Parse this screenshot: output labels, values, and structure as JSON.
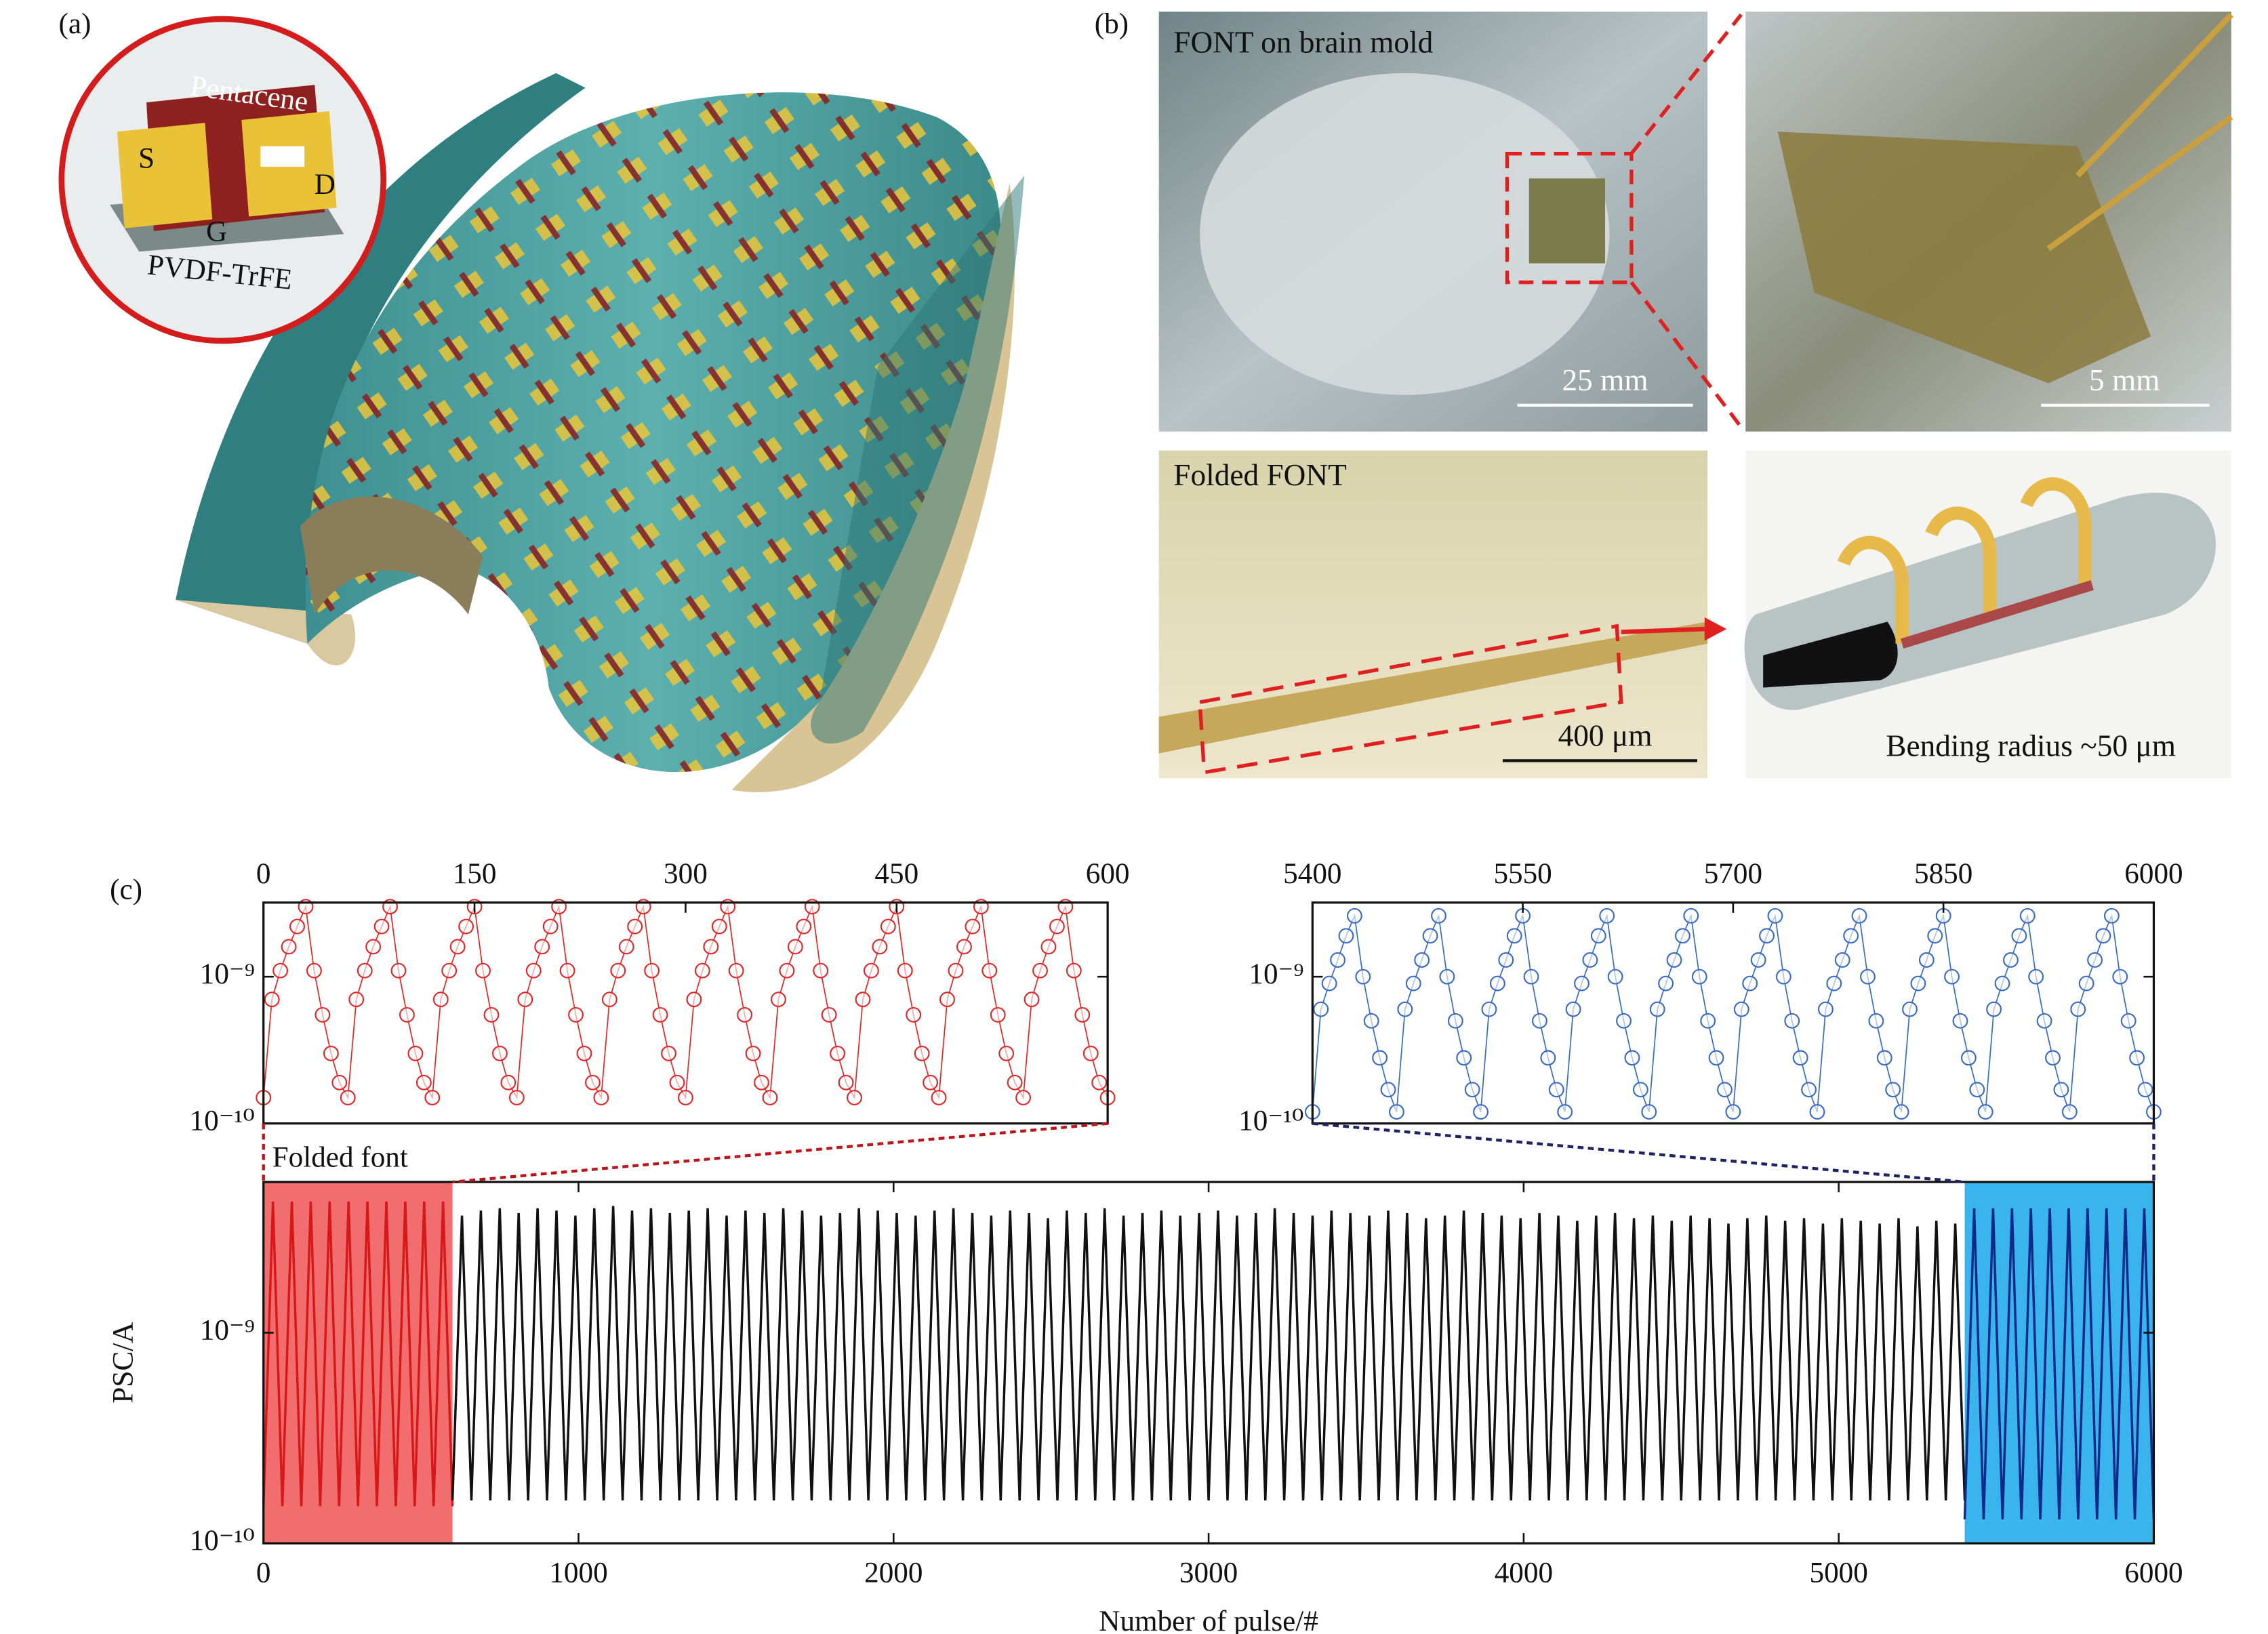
{
  "panels": {
    "panel_a": {
      "label": "(a)",
      "pentacene": "Pentacene",
      "source": "S",
      "drain": "D",
      "gate": "G",
      "dielectric": "PVDF-TrFE"
    },
    "panel_b": {
      "label": "(b)",
      "photo1_caption": "FONT on brain mold",
      "photo1_scale": "25 mm",
      "photo2_scale": "5 mm",
      "photo3_caption": "Folded FONT",
      "photo3_scale": "400 μm",
      "photo4_caption": "Bending radius ~50 μm"
    },
    "panel_c": {
      "label": "(c)"
    }
  },
  "chart_data": [
    {
      "type": "scatter",
      "log_y": true,
      "xlim": [
        0,
        600
      ],
      "xticks": [
        0,
        150,
        300,
        450,
        600
      ],
      "ylim": [
        1e-10,
        3.2e-09
      ],
      "yticks": [
        {
          "value": 1e-10,
          "label": "10⁻¹⁰"
        },
        {
          "value": 1e-09,
          "label": "10⁻⁹"
        }
      ],
      "series": [
        {
          "color": "#e02828",
          "x": [
            0,
            6,
            12,
            18,
            24,
            30,
            36,
            42,
            48,
            54,
            60,
            66,
            72,
            78,
            84,
            90,
            96,
            102,
            108,
            114,
            120,
            126,
            132,
            138,
            144,
            150,
            156,
            162,
            168,
            174,
            180,
            186,
            192,
            198,
            204,
            210,
            216,
            222,
            228,
            234,
            240,
            246,
            252,
            258,
            264,
            270,
            276,
            282,
            288,
            294,
            300,
            306,
            312,
            318,
            324,
            330,
            336,
            342,
            348,
            354,
            360,
            366,
            372,
            378,
            384,
            390,
            396,
            402,
            408,
            414,
            420,
            426,
            432,
            438,
            444,
            450,
            456,
            462,
            468,
            474,
            480,
            486,
            492,
            498,
            504,
            510,
            516,
            522,
            528,
            534,
            540,
            546,
            552,
            558,
            564,
            570,
            576,
            582,
            588,
            594,
            600
          ],
          "values": [
            1.5e-10,
            7e-10,
            1.1e-09,
            1.6e-09,
            2.2e-09,
            3e-09,
            1.1e-09,
            5.5e-10,
            3e-10,
            1.9e-10,
            1.5e-10,
            7e-10,
            1.1e-09,
            1.6e-09,
            2.2e-09,
            3e-09,
            1.1e-09,
            5.5e-10,
            3e-10,
            1.9e-10,
            1.5e-10,
            7e-10,
            1.1e-09,
            1.6e-09,
            2.2e-09,
            3e-09,
            1.1e-09,
            5.5e-10,
            3e-10,
            1.9e-10,
            1.5e-10,
            7e-10,
            1.1e-09,
            1.6e-09,
            2.2e-09,
            3e-09,
            1.1e-09,
            5.5e-10,
            3e-10,
            1.9e-10,
            1.5e-10,
            7e-10,
            1.1e-09,
            1.6e-09,
            2.2e-09,
            3e-09,
            1.1e-09,
            5.5e-10,
            3e-10,
            1.9e-10,
            1.5e-10,
            7e-10,
            1.1e-09,
            1.6e-09,
            2.2e-09,
            3e-09,
            1.1e-09,
            5.5e-10,
            3e-10,
            1.9e-10,
            1.5e-10,
            7e-10,
            1.1e-09,
            1.6e-09,
            2.2e-09,
            3e-09,
            1.1e-09,
            5.5e-10,
            3e-10,
            1.9e-10,
            1.5e-10,
            7e-10,
            1.1e-09,
            1.6e-09,
            2.2e-09,
            3e-09,
            1.1e-09,
            5.5e-10,
            3e-10,
            1.9e-10,
            1.5e-10,
            7e-10,
            1.1e-09,
            1.6e-09,
            2.2e-09,
            3e-09,
            1.1e-09,
            5.5e-10,
            3e-10,
            1.9e-10,
            1.5e-10,
            7e-10,
            1.1e-09,
            1.6e-09,
            2.2e-09,
            3e-09,
            1.1e-09,
            5.5e-10,
            3e-10,
            1.9e-10,
            1.5e-10
          ]
        }
      ]
    },
    {
      "type": "scatter",
      "log_y": true,
      "xlim": [
        5400,
        6000
      ],
      "xticks": [
        5400,
        5550,
        5700,
        5850,
        6000
      ],
      "ylim": [
        1e-10,
        3.2e-09
      ],
      "yticks": [
        {
          "value": 1e-10,
          "label": "10⁻¹⁰"
        },
        {
          "value": 1e-09,
          "label": "10⁻⁹"
        }
      ],
      "series": [
        {
          "color": "#3a6cc4",
          "x": [
            5400,
            5406,
            5412,
            5418,
            5424,
            5430,
            5436,
            5442,
            5448,
            5454,
            5460,
            5466,
            5472,
            5478,
            5484,
            5490,
            5496,
            5502,
            5508,
            5514,
            5520,
            5526,
            5532,
            5538,
            5544,
            5550,
            5556,
            5562,
            5568,
            5574,
            5580,
            5586,
            5592,
            5598,
            5604,
            5610,
            5616,
            5622,
            5628,
            5634,
            5640,
            5646,
            5652,
            5658,
            5664,
            5670,
            5676,
            5682,
            5688,
            5694,
            5700,
            5706,
            5712,
            5718,
            5724,
            5730,
            5736,
            5742,
            5748,
            5754,
            5760,
            5766,
            5772,
            5778,
            5784,
            5790,
            5796,
            5802,
            5808,
            5814,
            5820,
            5826,
            5832,
            5838,
            5844,
            5850,
            5856,
            5862,
            5868,
            5874,
            5880,
            5886,
            5892,
            5898,
            5904,
            5910,
            5916,
            5922,
            5928,
            5934,
            5940,
            5946,
            5952,
            5958,
            5964,
            5970,
            5976,
            5982,
            5988,
            5994,
            6000
          ],
          "values": [
            1.2e-10,
            6e-10,
            9e-10,
            1.3e-09,
            1.9e-09,
            2.6e-09,
            1e-09,
            5e-10,
            2.8e-10,
            1.7e-10,
            1.2e-10,
            6e-10,
            9e-10,
            1.3e-09,
            1.9e-09,
            2.6e-09,
            1e-09,
            5e-10,
            2.8e-10,
            1.7e-10,
            1.2e-10,
            6e-10,
            9e-10,
            1.3e-09,
            1.9e-09,
            2.6e-09,
            1e-09,
            5e-10,
            2.8e-10,
            1.7e-10,
            1.2e-10,
            6e-10,
            9e-10,
            1.3e-09,
            1.9e-09,
            2.6e-09,
            1e-09,
            5e-10,
            2.8e-10,
            1.7e-10,
            1.2e-10,
            6e-10,
            9e-10,
            1.3e-09,
            1.9e-09,
            2.6e-09,
            1e-09,
            5e-10,
            2.8e-10,
            1.7e-10,
            1.2e-10,
            6e-10,
            9e-10,
            1.3e-09,
            1.9e-09,
            2.6e-09,
            1e-09,
            5e-10,
            2.8e-10,
            1.7e-10,
            1.2e-10,
            6e-10,
            9e-10,
            1.3e-09,
            1.9e-09,
            2.6e-09,
            1e-09,
            5e-10,
            2.8e-10,
            1.7e-10,
            1.2e-10,
            6e-10,
            9e-10,
            1.3e-09,
            1.9e-09,
            2.6e-09,
            1e-09,
            5e-10,
            2.8e-10,
            1.7e-10,
            1.2e-10,
            6e-10,
            9e-10,
            1.3e-09,
            1.9e-09,
            2.6e-09,
            1e-09,
            5e-10,
            2.8e-10,
            1.7e-10,
            1.2e-10,
            6e-10,
            9e-10,
            1.3e-09,
            1.9e-09,
            2.6e-09,
            1e-09,
            5e-10,
            2.8e-10,
            1.7e-10,
            1.2e-10
          ]
        }
      ]
    },
    {
      "type": "line",
      "log_y": true,
      "xlabel": "Number of pulse/#",
      "ylabel": "PSC/A",
      "annotation": "Folded font",
      "xlim": [
        0,
        6000
      ],
      "xticks": [
        0,
        1000,
        2000,
        3000,
        4000,
        5000,
        6000
      ],
      "ylim": [
        1e-10,
        5.2e-09
      ],
      "yticks": [
        {
          "value": 1e-10,
          "label": "10⁻¹⁰"
        },
        {
          "value": 1e-09,
          "label": "10⁻⁹"
        }
      ],
      "highlights": [
        {
          "xlim": [
            0,
            600
          ],
          "color": "#f26d6d"
        },
        {
          "xlim": [
            5400,
            6000
          ],
          "color": "#3ab4ec"
        }
      ],
      "series": [
        {
          "color": "#d81818",
          "x": [
            0,
            30,
            60,
            90,
            120,
            150,
            180,
            210,
            240,
            270,
            300,
            330,
            360,
            390,
            420,
            450,
            480,
            510,
            540,
            570,
            600
          ],
          "values": [
            1.5e-10,
            4.2e-09,
            1.5e-10,
            4.2e-09,
            1.5e-10,
            4.2e-09,
            1.5e-10,
            4.2e-09,
            1.5e-10,
            4.2e-09,
            1.5e-10,
            4.2e-09,
            1.5e-10,
            4.2e-09,
            1.5e-10,
            4.2e-09,
            1.5e-10,
            4.2e-09,
            1.5e-10,
            4.2e-09,
            1.5e-10
          ]
        },
        {
          "color": "#111111",
          "x": [
            600,
            630,
            660,
            690,
            720,
            750,
            780,
            810,
            840,
            870,
            900,
            930,
            960,
            990,
            1020,
            1050,
            1080,
            1110,
            1140,
            1170,
            1200,
            1230,
            1260,
            1290,
            1320,
            1350,
            1380,
            1410,
            1440,
            1470,
            1500,
            1530,
            1560,
            1590,
            1620,
            1650,
            1680,
            1710,
            1740,
            1770,
            1800,
            1830,
            1860,
            1890,
            1920,
            1950,
            1980,
            2010,
            2040,
            2070,
            2100,
            2130,
            2160,
            2190,
            2220,
            2250,
            2280,
            2310,
            2340,
            2370,
            2400,
            2430,
            2460,
            2490,
            2520,
            2550,
            2580,
            2610,
            2640,
            2670,
            2700,
            2730,
            2760,
            2790,
            2820,
            2850,
            2880,
            2910,
            2940,
            2970,
            3000,
            3030,
            3060,
            3090,
            3120,
            3150,
            3180,
            3210,
            3240,
            3270,
            3300,
            3330,
            3360,
            3390,
            3420,
            3450,
            3480,
            3510,
            3540,
            3570,
            3600,
            3630,
            3660,
            3690,
            3720,
            3750,
            3780,
            3810,
            3840,
            3870,
            3900,
            3930,
            3960,
            3990,
            4020,
            4050,
            4080,
            4110,
            4140,
            4170,
            4200,
            4230,
            4260,
            4290,
            4320,
            4350,
            4380,
            4410,
            4440,
            4470,
            4500,
            4530,
            4560,
            4590,
            4620,
            4650,
            4680,
            4710,
            4740,
            4770,
            4800,
            4830,
            4860,
            4890,
            4920,
            4950,
            4980,
            5010,
            5040,
            5070,
            5100,
            5130,
            5160,
            5190,
            5220,
            5250,
            5280,
            5310,
            5340,
            5370,
            5400
          ],
          "values": [
            1.6e-10,
            3.6e-09,
            1.6e-10,
            3.8e-09,
            1.6e-10,
            3.9e-09,
            1.6e-10,
            3.7e-09,
            1.6e-10,
            3.9e-09,
            1.6e-10,
            3.8e-09,
            1.6e-10,
            3.6e-09,
            1.6e-10,
            3.9e-09,
            1.6e-10,
            4e-09,
            1.6e-10,
            3.8e-09,
            1.6e-10,
            3.9e-09,
            1.6e-10,
            3.7e-09,
            1.6e-10,
            3.8e-09,
            1.6e-10,
            3.9e-09,
            1.6e-10,
            3.6e-09,
            1.6e-10,
            3.8e-09,
            1.6e-10,
            3.7e-09,
            1.6e-10,
            3.9e-09,
            1.6e-10,
            3.8e-09,
            1.6e-10,
            3.6e-09,
            1.6e-10,
            3.7e-09,
            1.6e-10,
            3.9e-09,
            1.6e-10,
            3.8e-09,
            1.6e-10,
            3.7e-09,
            1.6e-10,
            3.6e-09,
            1.6e-10,
            3.8e-09,
            1.6e-10,
            3.9e-09,
            1.6e-10,
            3.7e-09,
            1.6e-10,
            3.6e-09,
            1.6e-10,
            3.8e-09,
            1.6e-10,
            3.7e-09,
            1.6e-10,
            3.5e-09,
            1.6e-10,
            3.8e-09,
            1.6e-10,
            3.7e-09,
            1.6e-10,
            3.9e-09,
            1.6e-10,
            3.6e-09,
            1.6e-10,
            3.7e-09,
            1.6e-10,
            3.8e-09,
            1.6e-10,
            3.6e-09,
            1.6e-10,
            3.7e-09,
            1.6e-10,
            3.8e-09,
            1.6e-10,
            3.6e-09,
            1.6e-10,
            3.7e-09,
            1.6e-10,
            3.9e-09,
            1.6e-10,
            3.7e-09,
            1.6e-10,
            3.6e-09,
            1.6e-10,
            3.8e-09,
            1.6e-10,
            3.7e-09,
            1.6e-10,
            3.6e-09,
            1.6e-10,
            3.8e-09,
            1.6e-10,
            3.7e-09,
            1.6e-10,
            3.5e-09,
            1.6e-10,
            3.6e-09,
            1.6e-10,
            3.8e-09,
            1.6e-10,
            3.7e-09,
            1.6e-10,
            3.6e-09,
            1.6e-10,
            3.5e-09,
            1.6e-10,
            3.7e-09,
            1.6e-10,
            3.6e-09,
            1.6e-10,
            3.4e-09,
            1.6e-10,
            3.6e-09,
            1.6e-10,
            3.7e-09,
            1.6e-10,
            3.5e-09,
            1.6e-10,
            3.6e-09,
            1.6e-10,
            3.4e-09,
            1.6e-10,
            3.6e-09,
            1.6e-10,
            3.5e-09,
            1.6e-10,
            3.3e-09,
            1.6e-10,
            3.5e-09,
            1.6e-10,
            3.6e-09,
            1.6e-10,
            3.4e-09,
            1.6e-10,
            3.5e-09,
            1.6e-10,
            3.3e-09,
            1.6e-10,
            3.5e-09,
            1.6e-10,
            3.4e-09,
            1.6e-10,
            3.3e-09,
            1.6e-10,
            3.5e-09,
            1.6e-10,
            3.2e-09,
            1.6e-10,
            3.4e-09,
            1.6e-10,
            3.3e-09,
            1.6e-10
          ]
        },
        {
          "color": "#0c2a8a",
          "x": [
            5400,
            5430,
            5460,
            5490,
            5520,
            5550,
            5580,
            5610,
            5640,
            5670,
            5700,
            5730,
            5760,
            5790,
            5820,
            5850,
            5880,
            5910,
            5940,
            5970,
            6000
          ],
          "values": [
            1.3e-10,
            3.9e-09,
            1.3e-10,
            3.9e-09,
            1.3e-10,
            3.9e-09,
            1.3e-10,
            3.9e-09,
            1.3e-10,
            3.9e-09,
            1.3e-10,
            3.9e-09,
            1.3e-10,
            3.9e-09,
            1.3e-10,
            3.9e-09,
            1.3e-10,
            3.9e-09,
            1.3e-10,
            3.9e-09,
            1.3e-10
          ]
        }
      ]
    }
  ]
}
